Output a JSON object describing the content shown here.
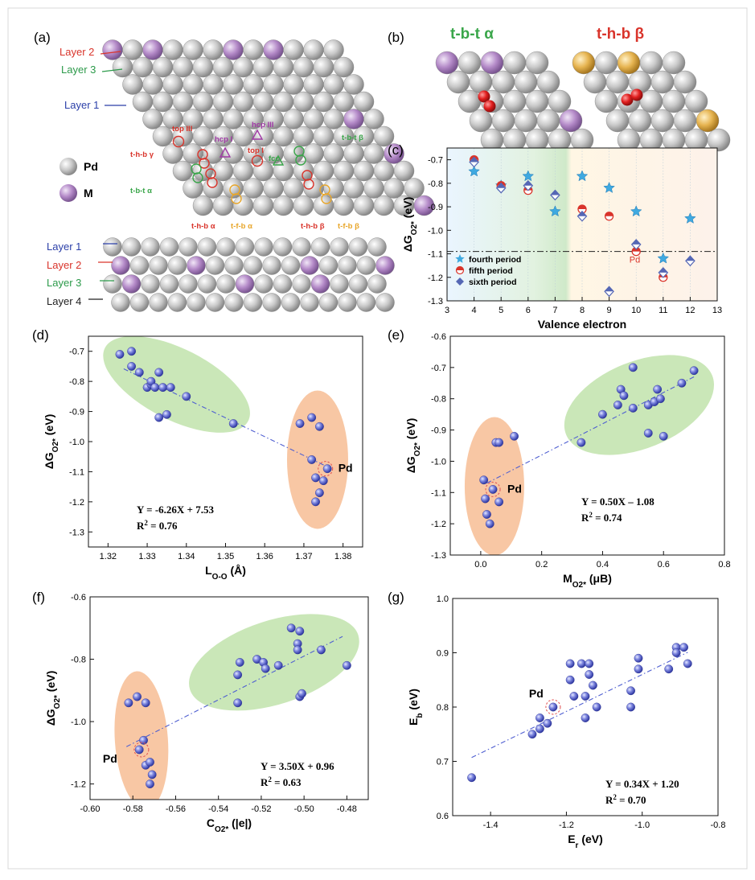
{
  "panels": {
    "a": {
      "label": "(a)",
      "layers_top": [
        "Layer 2",
        "Layer 3",
        "Layer 1"
      ],
      "layers_side": [
        "Layer 1",
        "Layer 2",
        "Layer 3",
        "Layer 4"
      ],
      "legend": [
        {
          "label": "Pd",
          "color": "#bdbdbd"
        },
        {
          "label": "M",
          "color": "#b48ac8"
        }
      ],
      "sites": [
        "top III",
        "hcp III",
        "t-b-t β",
        "t-h-b γ",
        "hcp I",
        "top I",
        "fcc",
        "t-b-t α",
        "t-h-b α",
        "t-f-b α",
        "t-h-b β",
        "t-f-b β"
      ],
      "colors": {
        "pd": "#bdbdbd",
        "m": "#b48ac8",
        "layer1": "#2b3fa8",
        "layer2": "#d9342b",
        "layer3": "#2c9a4a",
        "layer4": "#222222"
      }
    },
    "b": {
      "label": "(b)",
      "left_title": "t-b-t α",
      "right_title": "t-h-b β",
      "left_title_color": "#3aa64a",
      "right_title_color": "#d9342b"
    }
  },
  "chart_data": [
    {
      "panel": "(c)",
      "type": "scatter",
      "xlabel": "Valence electron",
      "ylabel": "ΔG",
      "ylabel_sub": "O2*",
      "ylabel_unit": " (eV)",
      "xlim": [
        3,
        13
      ],
      "ylim": [
        -1.3,
        -0.65
      ],
      "xticks": [
        3,
        4,
        5,
        6,
        7,
        8,
        9,
        10,
        11,
        12,
        13
      ],
      "yticks": [
        -1.3,
        -1.2,
        -1.1,
        -1.0,
        -0.9,
        -0.8,
        -0.7
      ],
      "reference_line": -1.09,
      "reference_label": "Pd",
      "legend_position": "bottom-left",
      "series": [
        {
          "name": "fourth period",
          "marker": "star",
          "color": "#3fa9e0",
          "points": [
            [
              4,
              -0.75
            ],
            [
              5,
              -0.81
            ],
            [
              6,
              -0.77
            ],
            [
              7,
              -0.92
            ],
            [
              8,
              -0.77
            ],
            [
              9,
              -0.82
            ],
            [
              10,
              -0.92
            ],
            [
              11,
              -1.12
            ],
            [
              12,
              -0.95
            ]
          ]
        },
        {
          "name": "fifth   period",
          "marker": "circle",
          "color": "#d9342b",
          "points": [
            [
              4,
              -0.7
            ],
            [
              5,
              -0.81
            ],
            [
              6,
              -0.83
            ],
            [
              8,
              -0.91
            ],
            [
              9,
              -0.94
            ],
            [
              10,
              -1.09
            ],
            [
              11,
              -1.2
            ]
          ]
        },
        {
          "name": "sixth   period",
          "marker": "diamond",
          "color": "#5567b5",
          "points": [
            [
              4,
              -0.71
            ],
            [
              5,
              -0.82
            ],
            [
              6,
              -0.81
            ],
            [
              7,
              -0.85
            ],
            [
              8,
              -0.94
            ],
            [
              9,
              -1.26
            ],
            [
              10,
              -1.06
            ],
            [
              11,
              -1.18
            ],
            [
              12,
              -1.13
            ]
          ]
        }
      ]
    },
    {
      "panel": "(d)",
      "type": "scatter",
      "xlabel": "L",
      "xlabel_sub": "O-O",
      "xlabel_unit": " (Å)",
      "ylabel": "ΔG",
      "ylabel_sub": "O2*",
      "ylabel_unit": " (eV)",
      "xlim": [
        1.315,
        1.385
      ],
      "ylim": [
        -1.35,
        -0.65
      ],
      "xticks": [
        1.32,
        1.33,
        1.34,
        1.35,
        1.36,
        1.37,
        1.38
      ],
      "yticks": [
        -1.3,
        -1.2,
        -1.1,
        -1.0,
        -0.9,
        -0.8,
        -0.7
      ],
      "equation": "Y = -6.26X + 7.53",
      "r2": "R",
      "r2_value": " = 0.76",
      "fit": {
        "slope": -6.26,
        "intercept": 7.53,
        "x_range": [
          1.324,
          1.377
        ]
      },
      "pd_label": "Pd",
      "pd_point": [
        1.3755,
        -1.09
      ],
      "points": [
        [
          1.323,
          -0.71
        ],
        [
          1.326,
          -0.7
        ],
        [
          1.326,
          -0.75
        ],
        [
          1.328,
          -0.77
        ],
        [
          1.33,
          -0.82
        ],
        [
          1.331,
          -0.81
        ],
        [
          1.331,
          -0.8
        ],
        [
          1.332,
          -0.82
        ],
        [
          1.333,
          -0.77
        ],
        [
          1.334,
          -0.82
        ],
        [
          1.336,
          -0.82
        ],
        [
          1.333,
          -0.92
        ],
        [
          1.335,
          -0.91
        ],
        [
          1.34,
          -0.85
        ],
        [
          1.352,
          -0.94
        ],
        [
          1.369,
          -0.94
        ],
        [
          1.372,
          -0.92
        ],
        [
          1.374,
          -0.95
        ],
        [
          1.372,
          -1.06
        ],
        [
          1.373,
          -1.12
        ],
        [
          1.374,
          -1.17
        ],
        [
          1.373,
          -1.2
        ],
        [
          1.375,
          -1.13
        ],
        [
          1.376,
          -1.09
        ]
      ]
    },
    {
      "panel": "(e)",
      "type": "scatter",
      "xlabel": "M",
      "xlabel_sub": "O2*",
      "xlabel_unit": " (μB)",
      "ylabel": "ΔG",
      "ylabel_sub": "O2*",
      "ylabel_unit": " (eV)",
      "xlim": [
        -0.1,
        0.8
      ],
      "ylim": [
        -1.3,
        -0.6
      ],
      "xticks": [
        0.0,
        0.2,
        0.4,
        0.6,
        0.8
      ],
      "yticks": [
        -1.3,
        -1.2,
        -1.1,
        -1.0,
        -0.9,
        -0.8,
        -0.7,
        -0.6
      ],
      "equation": "Y = 0.50X – 1.08",
      "r2": "R",
      "r2_value": " = 0.74",
      "fit": {
        "slope": 0.5,
        "intercept": -1.08,
        "x_range": [
          0.02,
          0.7
        ]
      },
      "pd_label": "Pd",
      "pd_point": [
        0.04,
        -1.09
      ],
      "points": [
        [
          0.01,
          -1.06
        ],
        [
          0.015,
          -1.12
        ],
        [
          0.02,
          -1.17
        ],
        [
          0.03,
          -1.2
        ],
        [
          0.04,
          -1.09
        ],
        [
          0.05,
          -0.94
        ],
        [
          0.06,
          -0.94
        ],
        [
          0.06,
          -1.13
        ],
        [
          0.11,
          -0.92
        ],
        [
          0.33,
          -0.94
        ],
        [
          0.4,
          -0.85
        ],
        [
          0.45,
          -0.82
        ],
        [
          0.46,
          -0.77
        ],
        [
          0.47,
          -0.79
        ],
        [
          0.5,
          -0.7
        ],
        [
          0.5,
          -0.83
        ],
        [
          0.55,
          -0.82
        ],
        [
          0.55,
          -0.91
        ],
        [
          0.57,
          -0.81
        ],
        [
          0.58,
          -0.77
        ],
        [
          0.59,
          -0.8
        ],
        [
          0.6,
          -0.92
        ],
        [
          0.66,
          -0.75
        ],
        [
          0.7,
          -0.71
        ]
      ]
    },
    {
      "panel": "(f)",
      "type": "scatter",
      "xlabel": "C",
      "xlabel_sub": "O2*",
      "xlabel_unit": " (|e|)",
      "ylabel": "ΔG",
      "ylabel_sub": "O2*",
      "ylabel_unit": " (eV)",
      "xlim": [
        -0.6,
        -0.47
      ],
      "ylim": [
        -1.25,
        -0.6
      ],
      "xticks": [
        -0.6,
        -0.58,
        -0.56,
        -0.54,
        -0.52,
        -0.5,
        -0.48
      ],
      "yticks": [
        -1.2,
        -1.0,
        -0.8,
        -0.6
      ],
      "equation": "Y = 3.50X + 0.96",
      "r2": "R",
      "r2_value": " = 0.63",
      "fit": {
        "slope": 3.5,
        "intercept": 0.96,
        "x_range": [
          -0.583,
          -0.482
        ]
      },
      "pd_label": "Pd",
      "pd_point": [
        -0.576,
        -1.09
      ],
      "points": [
        [
          -0.582,
          -0.94
        ],
        [
          -0.578,
          -0.92
        ],
        [
          -0.574,
          -0.94
        ],
        [
          -0.577,
          -1.09
        ],
        [
          -0.575,
          -1.06
        ],
        [
          -0.574,
          -1.14
        ],
        [
          -0.572,
          -1.13
        ],
        [
          -0.571,
          -1.17
        ],
        [
          -0.572,
          -1.2
        ],
        [
          -0.531,
          -0.85
        ],
        [
          -0.531,
          -0.94
        ],
        [
          -0.53,
          -0.81
        ],
        [
          -0.522,
          -0.8
        ],
        [
          -0.519,
          -0.81
        ],
        [
          -0.518,
          -0.83
        ],
        [
          -0.512,
          -0.82
        ],
        [
          -0.506,
          -0.7
        ],
        [
          -0.502,
          -0.71
        ],
        [
          -0.503,
          -0.75
        ],
        [
          -0.503,
          -0.77
        ],
        [
          -0.502,
          -0.92
        ],
        [
          -0.501,
          -0.91
        ],
        [
          -0.492,
          -0.77
        ],
        [
          -0.48,
          -0.82
        ]
      ]
    },
    {
      "panel": "(g)",
      "type": "scatter",
      "xlabel": "E",
      "xlabel_sub": "r",
      "xlabel_unit": " (eV)",
      "ylabel": "E",
      "ylabel_sub": "b",
      "ylabel_unit": " (eV)",
      "xlim": [
        -1.5,
        -0.8
      ],
      "ylim": [
        0.6,
        1.0
      ],
      "xticks": [
        -1.4,
        -1.2,
        -1.0,
        -0.8
      ],
      "yticks": [
        0.6,
        0.7,
        0.8,
        0.9,
        1.0
      ],
      "equation": "Y = 0.34X + 1.20",
      "r2": "R",
      "r2_value": " = 0.70",
      "fit": {
        "slope": 0.34,
        "intercept": 1.2,
        "x_range": [
          -1.45,
          -0.88
        ]
      },
      "pd_label": "Pd",
      "pd_point": [
        -1.235,
        0.8
      ],
      "points": [
        [
          -1.45,
          0.67
        ],
        [
          -1.29,
          0.75
        ],
        [
          -1.27,
          0.76
        ],
        [
          -1.27,
          0.78
        ],
        [
          -1.25,
          0.77
        ],
        [
          -1.235,
          0.8
        ],
        [
          -1.19,
          0.88
        ],
        [
          -1.19,
          0.85
        ],
        [
          -1.18,
          0.82
        ],
        [
          -1.16,
          0.88
        ],
        [
          -1.15,
          0.82
        ],
        [
          -1.15,
          0.78
        ],
        [
          -1.14,
          0.88
        ],
        [
          -1.14,
          0.86
        ],
        [
          -1.13,
          0.84
        ],
        [
          -1.12,
          0.8
        ],
        [
          -1.03,
          0.83
        ],
        [
          -1.03,
          0.8
        ],
        [
          -1.01,
          0.87
        ],
        [
          -1.01,
          0.89
        ],
        [
          -0.93,
          0.87
        ],
        [
          -0.91,
          0.91
        ],
        [
          -0.91,
          0.9
        ],
        [
          -0.89,
          0.91
        ],
        [
          -0.88,
          0.88
        ]
      ]
    }
  ]
}
